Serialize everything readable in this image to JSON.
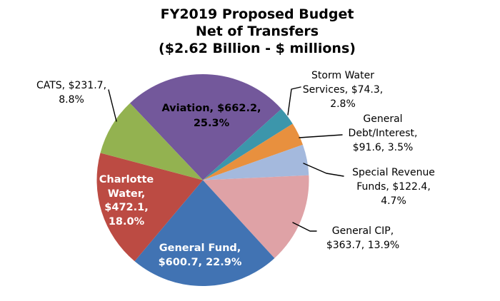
{
  "title": {
    "line1": "FY2019 Proposed Budget",
    "line2": "Net of Transfers",
    "line3": "($2.62 Billion - $ millions)"
  },
  "chart_data": {
    "type": "pie",
    "title": "FY2019 Proposed Budget Net of Transfers ($2.62 Billion - $ millions)",
    "total": "$2.62 Billion",
    "units": "$ millions",
    "start_angle_deg_math": 133.4,
    "direction": "clockwise",
    "legend_position": "none",
    "slices": [
      {
        "name": "Aviation",
        "value": 662.2,
        "pct": 25.3,
        "color": "#73589B",
        "label_placement": "inside"
      },
      {
        "name": "Storm Water Services",
        "value": 74.3,
        "pct": 2.8,
        "color": "#3C96AB",
        "label_placement": "outside"
      },
      {
        "name": "General Debt/Interest",
        "value": 91.6,
        "pct": 3.5,
        "color": "#E8903E",
        "label_placement": "outside"
      },
      {
        "name": "Special Revenue Funds",
        "value": 122.4,
        "pct": 4.7,
        "color": "#A4B9DD",
        "label_placement": "outside"
      },
      {
        "name": "General CIP",
        "value": 363.7,
        "pct": 13.9,
        "color": "#DFA2A6",
        "label_placement": "outside"
      },
      {
        "name": "General Fund",
        "value": 600.7,
        "pct": 22.9,
        "color": "#4173B3",
        "label_placement": "inside"
      },
      {
        "name": "Charlotte Water",
        "value": 472.1,
        "pct": 18.0,
        "color": "#BC4B43",
        "label_placement": "inside"
      },
      {
        "name": "CATS",
        "value": 231.7,
        "pct": 8.8,
        "color": "#93B250",
        "label_placement": "outside"
      }
    ]
  },
  "labels": {
    "aviation": {
      "line1": "Aviation, $662.2,",
      "line2": "25.3%"
    },
    "charlotte": {
      "line1": "Charlotte",
      "line2": "Water,",
      "line3": "$472.1,",
      "line4": "18.0%"
    },
    "gfund": {
      "line1": "General Fund,",
      "line2": "$600.7, 22.9%"
    },
    "cats": {
      "line1": "CATS, $231.7,",
      "line2": "8.8%"
    },
    "storm": {
      "line1": "Storm Water",
      "line2": "Services, $74.3,",
      "line3": "2.8%"
    },
    "debt": {
      "line1": "General",
      "line2": "Debt/Interest,",
      "line3": "$91.6, 3.5%"
    },
    "srf": {
      "line1": "Special Revenue",
      "line2": "Funds, $122.4,",
      "line3": "4.7%"
    },
    "cip": {
      "line1": "General CIP,",
      "line2": "$363.7, 13.9%"
    }
  }
}
